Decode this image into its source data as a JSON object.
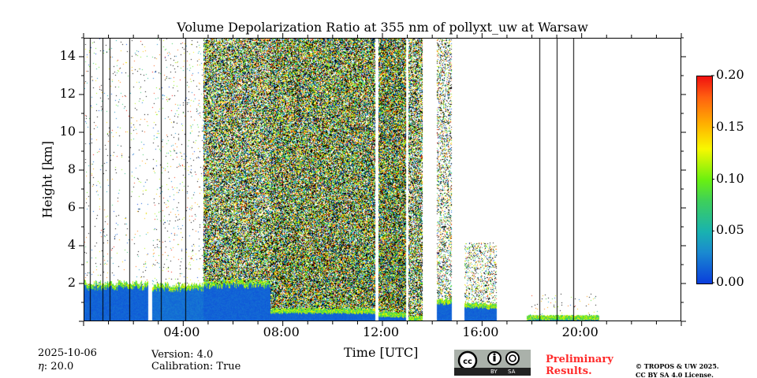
{
  "chart_data": {
    "type": "heatmap",
    "title": "Volume Depolarization Ratio at 355 nm of pollyxt_uw at Warsaw",
    "xlabel": "Time [UTC]",
    "ylabel": "Height [km]",
    "xlim_hours": [
      0,
      24
    ],
    "ylim_km": [
      0,
      15
    ],
    "xticks": [
      {
        "v": 4,
        "label": "04:00"
      },
      {
        "v": 8,
        "label": "08:00"
      },
      {
        "v": 12,
        "label": "12:00"
      },
      {
        "v": 16,
        "label": "16:00"
      },
      {
        "v": 20,
        "label": "20:00"
      }
    ],
    "yticks": [
      {
        "v": 2,
        "label": "2"
      },
      {
        "v": 4,
        "label": "4"
      },
      {
        "v": 6,
        "label": "6"
      },
      {
        "v": 8,
        "label": "8"
      },
      {
        "v": 10,
        "label": "10"
      },
      {
        "v": 12,
        "label": "12"
      },
      {
        "v": 14,
        "label": "14"
      }
    ],
    "colorbar": {
      "range": [
        0,
        0.2
      ],
      "ticks": [
        {
          "v": 0,
          "label": "0.00"
        },
        {
          "v": 0.05,
          "label": "0.05"
        },
        {
          "v": 0.1,
          "label": "0.10"
        },
        {
          "v": 0.15,
          "label": "0.15"
        },
        {
          "v": 0.2,
          "label": "0.20"
        }
      ],
      "colormap": "jet"
    },
    "layers": [
      {
        "t0": 0,
        "t1": 2.6,
        "top_km": 2.1,
        "value": 0.01,
        "noise_top_km": 15,
        "noise_density": 0.02
      },
      {
        "t0": 2.75,
        "t1": 4.8,
        "top_km": 2.0,
        "value": 0.015,
        "noise_top_km": 15,
        "noise_density": 0.03
      },
      {
        "t0": 4.8,
        "t1": 7.5,
        "top_km": 2.2,
        "value": 0.01,
        "noise_top_km": 15,
        "noise_density": 0.75
      },
      {
        "t0": 7.5,
        "t1": 11.7,
        "top_km": 0.7,
        "value": 0.01,
        "noise_top_km": 15,
        "noise_density": 0.85
      },
      {
        "t0": 11.85,
        "t1": 12.95,
        "top_km": 0.5,
        "value": 0.01,
        "noise_top_km": 15,
        "noise_density": 0.9
      },
      {
        "t0": 13.05,
        "t1": 13.6,
        "top_km": 0.3,
        "value": 0.01,
        "noise_top_km": 15,
        "noise_density": 0.7
      },
      {
        "t0": 14.2,
        "t1": 14.8,
        "top_km": 1.2,
        "value": 0.01,
        "noise_top_km": 15,
        "noise_density": 0.35
      },
      {
        "t0": 15.3,
        "t1": 16.6,
        "top_km": 1.0,
        "value": 0.01,
        "noise_top_km": 4.2,
        "noise_density": 0.25
      },
      {
        "t0": 17.8,
        "t1": 20.7,
        "top_km": 0.35,
        "value": 0.02,
        "noise_top_km": 1.5,
        "noise_density": 0.03
      }
    ],
    "vertical_lines_hours": [
      0.25,
      0.75,
      1.05,
      1.85,
      3.1,
      4.1,
      18.3,
      19.0,
      19.65
    ]
  },
  "info": {
    "date": "2025-10-06",
    "eta": ": 20.0",
    "version": "Version: 4.0",
    "calibration": "Calibration: True"
  },
  "license": {
    "cc_by": "BY",
    "cc_sa": "SA",
    "preliminary": "Preliminary",
    "results": "Results.",
    "copyright": "© TROPOS & UW 2025.",
    "license_text": "CC BY SA 4.0 License."
  }
}
